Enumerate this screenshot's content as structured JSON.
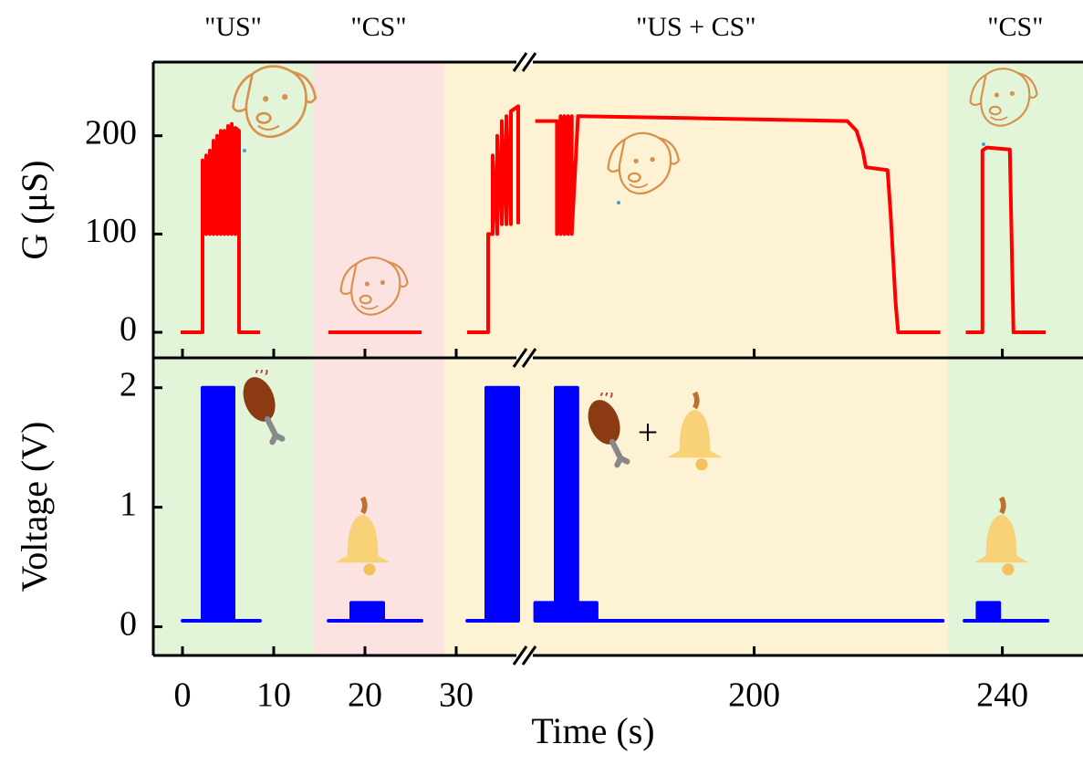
{
  "chart_data": {
    "type": "line",
    "xlabel": "Time (s)",
    "xlim": [
      [
        -3.2,
        37.5
      ],
      [
        163,
        253
      ]
    ],
    "xticks": [
      0,
      10,
      20,
      30,
      200,
      240
    ],
    "regions": [
      {
        "label": "\"US\"",
        "start": -3.2,
        "end": 14.3,
        "color": "#e2f5d9"
      },
      {
        "label": "\"CS\"",
        "start": 14.3,
        "end": 28.7,
        "color": "#fde2e2"
      },
      {
        "label": "\"US + CS\"",
        "start": 28.7,
        "end": 231.2,
        "color": "#fdf2d3"
      },
      {
        "label": "\"CS\"",
        "start": 231.2,
        "end": 253,
        "color": "#e2f5d9"
      }
    ],
    "panels": [
      {
        "ylabel": "G (μS)",
        "ylim": [
          -26,
          275
        ],
        "yticks": [
          0,
          100,
          200
        ],
        "filled": false,
        "series": [
          {
            "color": "#ff0000",
            "x": [
              -0.2,
              2.2,
              2.2,
              2.6,
              2.6,
              3.0,
              3.0,
              3.4,
              3.4,
              3.8,
              3.8,
              4.2,
              4.2,
              4.6,
              4.6,
              5.0,
              5.0,
              5.4,
              5.4,
              5.8,
              5.8,
              6.2,
              6.2,
              8.5,
              null,
              16,
              26.2,
              null,
              31.2,
              33.5,
              33.5,
              34.0,
              34.0,
              34.5,
              34.5,
              35.0,
              35.0,
              35.5,
              35.5,
              36.0,
              36.0,
              36.8,
              36.8,
              null,
              164.7,
              168.2,
              168.2,
              168.8,
              168.8,
              169.4,
              169.4,
              170.0,
              170.0,
              170.6,
              170.6,
              171.6,
              190,
              215,
              216.5,
              217.5,
              218,
              221.5,
              222,
              222.8,
              223.2,
              230,
              null,
              234.1,
              236.8,
              236.8,
              237.5,
              241.2,
              241.8,
              247
            ],
            "values": [
              0,
              0,
              175,
              100,
              180,
              100,
              185,
              100,
              195,
              100,
              200,
              100,
              205,
              100,
              205,
              100,
              210,
              100,
              212,
              100,
              208,
              205,
              0,
              0,
              null,
              0,
              0,
              null,
              0,
              0,
              100,
              100,
              180,
              100,
              200,
              110,
              215,
              110,
              220,
              110,
              225,
              230,
              110,
              null,
              215,
              215,
              100,
              220,
              100,
              220,
              100,
              220,
              100,
              220,
              100,
              220,
              218,
              215,
              205,
              185,
              168,
              165,
              120,
              30,
              0,
              0,
              null,
              0,
              0,
              185,
              188,
              186,
              0,
              0
            ]
          }
        ]
      },
      {
        "ylabel": "Voltage (V)",
        "ylim": [
          -0.24,
          2.25
        ],
        "yticks": [
          0,
          1,
          2
        ],
        "filled": true,
        "annotations": [
          "+"
        ],
        "series": [
          {
            "color": "#0000ff",
            "x": [
              0,
              2.2,
              2.2,
              5.6,
              5.6,
              8.5,
              null,
              16,
              18.5,
              18.5,
              22,
              22,
              26.2,
              null,
              31.2,
              33.3,
              33.3,
              36.8,
              36.8,
              null,
              164.7,
              164.7,
              167.6,
              167.6,
              168,
              168,
              171.5,
              171.5,
              174.6,
              174.6,
              230.4,
              null,
              233.9,
              236,
              236,
              239.5,
              239.5,
              247.3
            ],
            "values": [
              0.05,
              0.05,
              2.0,
              2.0,
              0.05,
              0.05,
              null,
              0.05,
              0.05,
              0.2,
              0.2,
              0.05,
              0.05,
              null,
              0.05,
              0.05,
              2.0,
              2.0,
              0.05,
              null,
              0.05,
              0.2,
              0.2,
              0.05,
              0.05,
              2.0,
              2.0,
              0.2,
              0.2,
              0.05,
              0.05,
              null,
              0.05,
              0.05,
              0.2,
              0.2,
              0.05,
              0.05
            ]
          }
        ]
      }
    ]
  }
}
